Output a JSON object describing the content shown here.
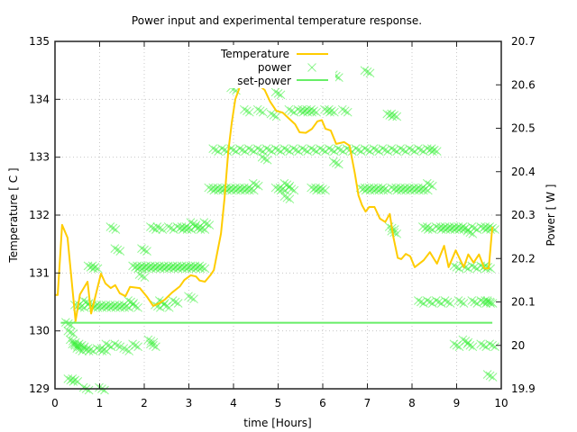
{
  "chart_data": {
    "type": "line",
    "title": "Power input and experimental temperature response.",
    "xlabel": "time [Hours]",
    "ylabel": "Temperature [ C ]",
    "y2label": "Power [ W ]",
    "xlim": [
      0,
      10
    ],
    "ylim": [
      129,
      135
    ],
    "y2lim": [
      19.9,
      20.7
    ],
    "grid": true,
    "legend_position": "top-center",
    "x_ticks": [
      "0",
      "1",
      "2",
      "3",
      "4",
      "5",
      "6",
      "7",
      "8",
      "9",
      "10"
    ],
    "y_ticks": [
      "129",
      "130",
      "131",
      "132",
      "133",
      "134",
      "135"
    ],
    "y2_ticks": [
      "19.9",
      "20",
      "20.1",
      "20.2",
      "20.3",
      "20.4",
      "20.5",
      "20.6",
      "20.7"
    ],
    "colors": {
      "temperature": "#ffcc00",
      "power": "#33ee33",
      "set_power": "#66ee66",
      "axis": "#222222",
      "grid": "#c8c8c8"
    },
    "series": [
      {
        "name": "Temperature",
        "style": "line",
        "axis": "left",
        "x": [
          0.0,
          0.06,
          0.16,
          0.28,
          0.46,
          0.56,
          0.73,
          0.81,
          1.03,
          1.13,
          1.25,
          1.35,
          1.45,
          1.58,
          1.68,
          1.9,
          2.06,
          2.2,
          2.34,
          2.46,
          2.62,
          2.8,
          2.9,
          3.04,
          3.16,
          3.24,
          3.36,
          3.48,
          3.56,
          3.62,
          3.72,
          3.8,
          3.88,
          3.96,
          4.04,
          4.14,
          4.26,
          4.52,
          4.7,
          4.82,
          4.96,
          5.1,
          5.24,
          5.38,
          5.48,
          5.62,
          5.76,
          5.88,
          5.98,
          6.06,
          6.18,
          6.3,
          6.48,
          6.6,
          6.72,
          6.8,
          6.88,
          6.96,
          7.04,
          7.16,
          7.28,
          7.4,
          7.5,
          7.58,
          7.68,
          7.76,
          7.86,
          7.96,
          8.06,
          8.26,
          8.4,
          8.56,
          8.72,
          8.82,
          8.98,
          9.16,
          9.26,
          9.38,
          9.5,
          9.62,
          9.72,
          9.8
        ],
        "y": [
          130.62,
          130.62,
          131.83,
          131.61,
          130.17,
          130.63,
          130.85,
          130.3,
          130.99,
          130.82,
          130.74,
          130.79,
          130.65,
          130.6,
          130.76,
          130.74,
          130.59,
          130.43,
          130.48,
          130.54,
          130.66,
          130.77,
          130.88,
          130.96,
          130.94,
          130.87,
          130.85,
          130.96,
          131.05,
          131.29,
          131.68,
          132.3,
          133.08,
          133.59,
          134.0,
          134.21,
          134.27,
          134.27,
          134.16,
          133.96,
          133.8,
          133.77,
          133.67,
          133.57,
          133.43,
          133.42,
          133.49,
          133.62,
          133.64,
          133.49,
          133.46,
          133.23,
          133.26,
          133.2,
          132.72,
          132.34,
          132.17,
          132.06,
          132.14,
          132.14,
          131.94,
          131.88,
          132.02,
          131.63,
          131.26,
          131.24,
          131.33,
          131.29,
          131.1,
          131.22,
          131.36,
          131.16,
          131.47,
          131.1,
          131.39,
          131.1,
          131.32,
          131.18,
          131.32,
          131.08,
          131.08,
          131.8
        ]
      },
      {
        "name": "power",
        "style": "points",
        "axis": "right",
        "x": [
          0.3,
          0.35,
          0.4,
          0.45,
          0.5,
          0.55,
          0.6,
          0.7,
          0.8,
          0.5,
          0.6,
          0.7,
          0.8,
          0.9,
          1.0,
          1.1,
          1.2,
          1.3,
          1.4,
          1.5,
          1.6,
          1.7,
          1.8,
          1.0,
          1.1,
          1.2,
          1.4,
          1.6,
          1.8,
          0.8,
          0.9,
          0.35,
          0.45,
          0.7,
          1.05,
          1.3,
          2.15,
          2.2,
          1.8,
          1.9,
          2.0,
          2.1,
          2.2,
          2.3,
          2.4,
          2.5,
          2.6,
          2.7,
          2.8,
          2.9,
          3.0,
          3.1,
          3.2,
          3.3,
          2.2,
          2.35,
          2.6,
          2.8,
          2.9,
          3.0,
          3.1,
          3.2,
          3.3,
          3.4,
          2.3,
          2.5,
          2.7,
          3.05,
          2.0,
          1.95,
          1.4,
          2.4,
          3.5,
          3.6,
          3.7,
          3.8,
          3.9,
          4.0,
          4.1,
          4.2,
          4.3,
          4.4,
          4.5,
          5.0,
          5.1,
          5.2,
          5.3,
          5.8,
          5.9,
          6.0,
          6.9,
          7.0,
          7.1,
          7.2,
          7.3,
          7.4,
          7.6,
          7.7,
          7.8,
          7.9,
          8.0,
          8.1,
          8.2,
          8.3,
          8.4,
          3.6,
          3.8,
          4.0,
          4.2,
          4.4,
          4.6,
          4.8,
          5.0,
          5.2,
          5.4,
          5.6,
          5.8,
          6.0,
          6.2,
          6.4,
          6.6,
          6.8,
          7.0,
          7.2,
          7.4,
          7.6,
          7.8,
          8.0,
          8.2,
          8.4,
          8.5,
          4.3,
          4.6,
          4.9,
          5.3,
          5.5,
          5.6,
          5.7,
          5.8,
          6.1,
          6.2,
          6.5,
          7.5,
          7.6,
          4.0,
          4.7,
          5.0,
          5.7,
          6.3,
          7.0,
          8.3,
          8.4,
          8.6,
          8.7,
          8.8,
          8.9,
          9.0,
          9.1,
          9.2,
          9.3,
          9.4,
          9.6,
          9.7,
          9.8,
          9.0,
          9.2,
          9.4,
          9.6,
          9.7,
          8.2,
          8.4,
          8.6,
          8.8,
          9.1,
          9.4,
          9.6,
          9.7,
          9.75,
          9.0,
          9.2,
          9.3,
          9.6,
          9.8,
          9.75,
          7.55,
          7.6,
          6.3,
          5.2
        ],
        "y": [
          20.05,
          20.03,
          20.01,
          20.0,
          20.0,
          19.99,
          20.0,
          19.99,
          19.99,
          20.09,
          20.09,
          20.1,
          20.09,
          20.09,
          20.09,
          20.09,
          20.09,
          20.09,
          20.09,
          20.09,
          20.09,
          20.1,
          20.09,
          19.99,
          19.99,
          20.0,
          20.0,
          19.99,
          20.0,
          20.18,
          20.18,
          19.92,
          19.92,
          19.9,
          19.9,
          20.27,
          20.01,
          20.0,
          20.18,
          20.18,
          20.18,
          20.18,
          20.18,
          20.18,
          20.18,
          20.18,
          20.18,
          20.18,
          20.18,
          20.18,
          20.18,
          20.18,
          20.18,
          20.18,
          20.27,
          20.27,
          20.27,
          20.27,
          20.27,
          20.27,
          20.28,
          20.27,
          20.27,
          20.28,
          20.09,
          20.09,
          20.1,
          20.11,
          20.22,
          20.16,
          20.22,
          20.1,
          20.36,
          20.36,
          20.36,
          20.36,
          20.36,
          20.36,
          20.36,
          20.36,
          20.36,
          20.36,
          20.37,
          20.36,
          20.36,
          20.37,
          20.36,
          20.36,
          20.36,
          20.36,
          20.36,
          20.36,
          20.36,
          20.36,
          20.36,
          20.36,
          20.36,
          20.36,
          20.36,
          20.36,
          20.36,
          20.36,
          20.36,
          20.36,
          20.37,
          20.45,
          20.45,
          20.45,
          20.45,
          20.45,
          20.45,
          20.45,
          20.45,
          20.45,
          20.45,
          20.45,
          20.45,
          20.45,
          20.45,
          20.45,
          20.45,
          20.45,
          20.45,
          20.45,
          20.45,
          20.45,
          20.45,
          20.45,
          20.45,
          20.45,
          20.45,
          20.54,
          20.54,
          20.53,
          20.54,
          20.54,
          20.54,
          20.54,
          20.54,
          20.54,
          20.54,
          20.54,
          20.53,
          20.53,
          20.59,
          20.43,
          20.58,
          20.64,
          20.62,
          20.63,
          20.27,
          20.27,
          20.27,
          20.27,
          20.27,
          20.27,
          20.27,
          20.27,
          20.27,
          20.26,
          20.27,
          20.27,
          20.27,
          20.27,
          20.18,
          20.18,
          20.18,
          20.18,
          20.18,
          20.1,
          20.1,
          20.1,
          20.1,
          20.1,
          20.1,
          20.1,
          20.1,
          20.1,
          20.0,
          20.01,
          20.0,
          20.0,
          20.0,
          19.93,
          20.27,
          20.26,
          20.42,
          20.34
        ]
      },
      {
        "name": "set-power",
        "style": "line",
        "axis": "right",
        "x": [
          0.13,
          9.8
        ],
        "y": [
          20.052,
          20.052
        ]
      }
    ]
  }
}
